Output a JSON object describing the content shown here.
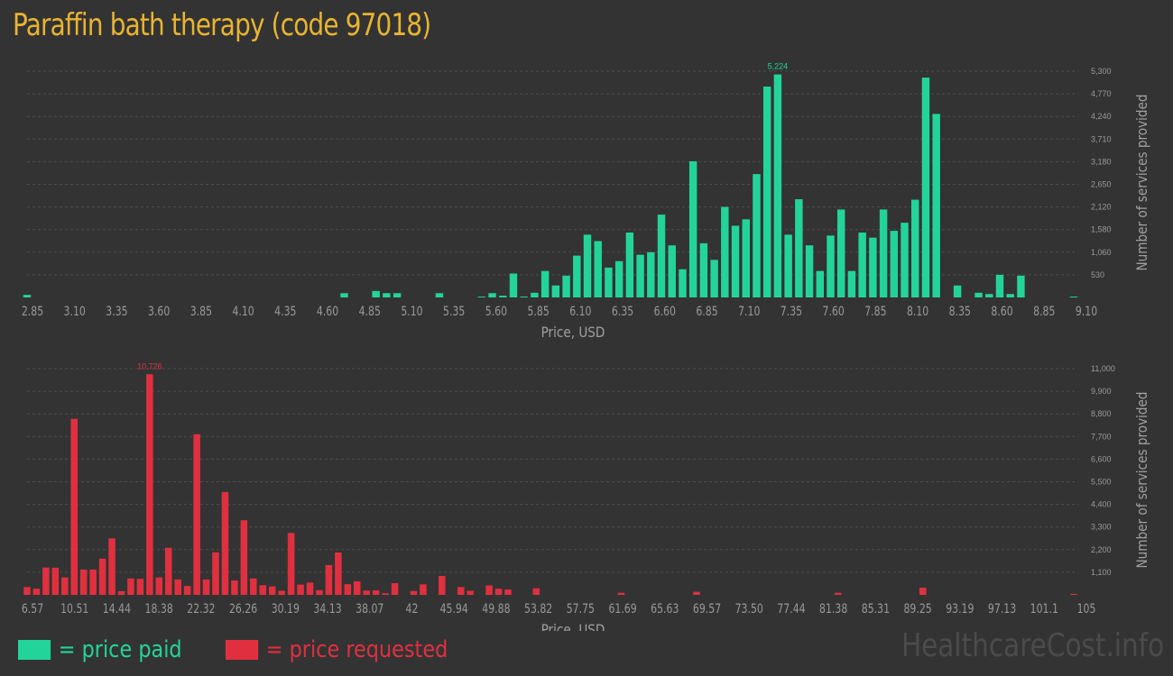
{
  "title": "Paraffin bath therapy (code 97018)",
  "colors": {
    "title": "#e8b431",
    "paid": "#23d49a",
    "requested": "#e0303f",
    "grid": "#4d4d4d",
    "tick": "#9a9a9a",
    "axis_label": "#a0a0a0"
  },
  "legend": {
    "paid_label": "= price paid",
    "requested_label": "= price requested"
  },
  "watermark": "HealthcareCost.info",
  "chart_data": [
    {
      "type": "bar",
      "name": "paid",
      "xlabel": "Price, USD",
      "ylabel": "Number of services provided",
      "x_ticks": [
        "2.85",
        "3.10",
        "3.35",
        "3.60",
        "3.85",
        "4.10",
        "4.35",
        "4.60",
        "4.85",
        "5.10",
        "5.35",
        "5.60",
        "5.85",
        "6.10",
        "6.35",
        "6.60",
        "6.85",
        "7.10",
        "7.35",
        "7.60",
        "7.85",
        "8.10",
        "8.35",
        "8.60",
        "8.85",
        "9.10"
      ],
      "y_ticks": [
        "530",
        "1,060",
        "1,580",
        "2,120",
        "2,650",
        "3,180",
        "3,710",
        "4,240",
        "4,770",
        "5,300"
      ],
      "ylim": [
        0,
        5300
      ],
      "peak_label": "5,224",
      "values": [
        60,
        0,
        0,
        0,
        0,
        0,
        0,
        0,
        0,
        0,
        0,
        0,
        0,
        0,
        0,
        0,
        0,
        0,
        0,
        0,
        0,
        0,
        0,
        0,
        0,
        0,
        0,
        0,
        0,
        0,
        100,
        0,
        0,
        150,
        100,
        100,
        0,
        0,
        0,
        100,
        0,
        0,
        0,
        20,
        100,
        40,
        560,
        20,
        110,
        620,
        280,
        510,
        980,
        1470,
        1320,
        700,
        850,
        1520,
        1000,
        1060,
        1940,
        1220,
        660,
        3190,
        1270,
        880,
        2120,
        1680,
        1830,
        2890,
        4940,
        5224,
        1470,
        2300,
        1220,
        620,
        1450,
        2060,
        620,
        1520,
        1400,
        2060,
        1560,
        1750,
        2290,
        5150,
        4300,
        0,
        280,
        0,
        110,
        80,
        530,
        80,
        510,
        0,
        0,
        0,
        0,
        20
      ]
    },
    {
      "type": "bar",
      "name": "requested",
      "xlabel": "Price, USD",
      "ylabel": "Number of services provided",
      "x_ticks": [
        "6.57",
        "10.51",
        "14.44",
        "18.38",
        "22.32",
        "26.26",
        "30.19",
        "34.13",
        "38.07",
        "42",
        "45.94",
        "49.88",
        "53.82",
        "57.75",
        "61.69",
        "65.63",
        "69.57",
        "73.50",
        "77.44",
        "81.38",
        "85.31",
        "89.25",
        "93.19",
        "97.13",
        "101.1",
        "105"
      ],
      "y_ticks": [
        "1,100",
        "2,200",
        "3,300",
        "4,400",
        "5,500",
        "6,600",
        "7,700",
        "8,800",
        "9,900",
        "11,000"
      ],
      "ylim": [
        0,
        11000
      ],
      "peak_label": "10,726",
      "values": [
        380,
        300,
        1330,
        1320,
        850,
        8560,
        1230,
        1230,
        1760,
        2750,
        180,
        800,
        780,
        10726,
        850,
        2290,
        750,
        430,
        7810,
        750,
        2070,
        5000,
        700,
        3630,
        800,
        470,
        410,
        200,
        3010,
        500,
        600,
        230,
        1450,
        2060,
        520,
        660,
        210,
        220,
        80,
        570,
        0,
        190,
        510,
        0,
        920,
        0,
        380,
        200,
        0,
        460,
        300,
        260,
        0,
        0,
        320,
        0,
        0,
        0,
        0,
        0,
        0,
        0,
        0,
        100,
        0,
        0,
        0,
        0,
        0,
        0,
        0,
        150,
        0,
        0,
        0,
        0,
        0,
        0,
        0,
        0,
        0,
        0,
        0,
        0,
        0,
        0,
        100,
        0,
        0,
        0,
        0,
        0,
        0,
        0,
        0,
        350,
        0,
        0,
        0,
        0,
        0,
        0,
        0,
        0,
        0,
        0,
        0,
        0,
        0,
        0,
        0,
        50
      ]
    }
  ]
}
